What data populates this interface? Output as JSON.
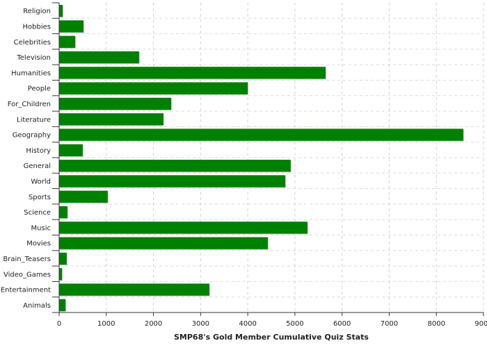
{
  "chart_data": {
    "type": "bar",
    "orientation": "horizontal",
    "title": "",
    "xlabel": "SMP68's Gold Member Cumulative Quiz Stats",
    "ylabel": "",
    "xlim": [
      0,
      9000
    ],
    "xticks": [
      0,
      1000,
      2000,
      3000,
      4000,
      5000,
      6000,
      7000,
      8000,
      9000
    ],
    "grid": true,
    "bar_color": "#008000",
    "categories": [
      "Religion",
      "Hobbies",
      "Celebrities",
      "Television",
      "Humanities",
      "People",
      "For_Children",
      "Literature",
      "Geography",
      "History",
      "General",
      "World",
      "Sports",
      "Science",
      "Music",
      "Movies",
      "Brain_Teasers",
      "Video_Games",
      "Entertainment",
      "Animals"
    ],
    "values": [
      75,
      515,
      340,
      1695,
      5650,
      4000,
      2375,
      2210,
      8570,
      500,
      4910,
      4795,
      1030,
      175,
      5265,
      4425,
      160,
      60,
      3185,
      135
    ]
  }
}
